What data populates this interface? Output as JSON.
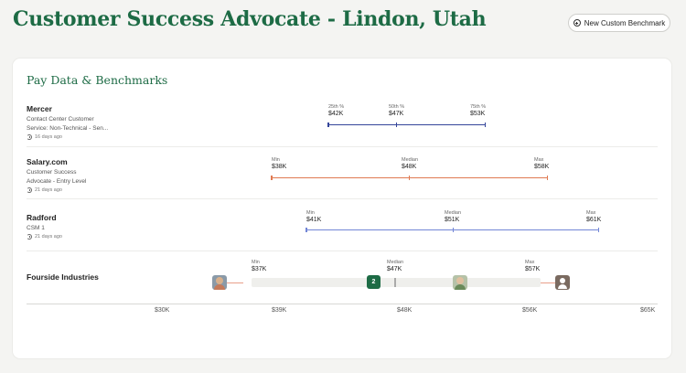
{
  "page": {
    "title": "Customer Success Advocate - Lindon, Utah"
  },
  "header": {
    "new_benchmark_label": "New Custom Benchmark"
  },
  "card": {
    "title": "Pay Data & Benchmarks"
  },
  "sources": [
    {
      "name": "Mercer",
      "subtitle_line1": "Contact Center Customer",
      "subtitle_line2": "Service: Non-Technical - Sen...",
      "updated": "16 days ago",
      "color": "#34459a",
      "points": [
        {
          "key": "25th %",
          "value": "$42K"
        },
        {
          "key": "50th %",
          "value": "$47K"
        },
        {
          "key": "75th %",
          "value": "$53K"
        }
      ]
    },
    {
      "name": "Salary.com",
      "subtitle_line1": "Customer Success",
      "subtitle_line2": "Advocate - Entry Level",
      "updated": "21 days ago",
      "color": "#e07a52",
      "points": [
        {
          "key": "Min",
          "value": "$38K"
        },
        {
          "key": "Median",
          "value": "$48K"
        },
        {
          "key": "Max",
          "value": "$58K"
        }
      ]
    },
    {
      "name": "Radford",
      "subtitle_line1": "CSM 1",
      "subtitle_line2": "",
      "updated": "21 days ago",
      "color": "#7286d6",
      "points": [
        {
          "key": "Min",
          "value": "$41K"
        },
        {
          "key": "Median",
          "value": "$51K"
        },
        {
          "key": "Max",
          "value": "$61K"
        }
      ]
    }
  ],
  "internal": {
    "name": "Fourside Industries",
    "color": "#e9a08a",
    "points": [
      {
        "key": "Min",
        "value": "$37K"
      },
      {
        "key": "Median",
        "value": "$47K"
      },
      {
        "key": "Max",
        "value": "$57K"
      }
    ],
    "employee_count_badge": "2"
  },
  "axis": {
    "labels": [
      "$30K",
      "$39K",
      "$48K",
      "$56K",
      "$65K"
    ]
  }
}
